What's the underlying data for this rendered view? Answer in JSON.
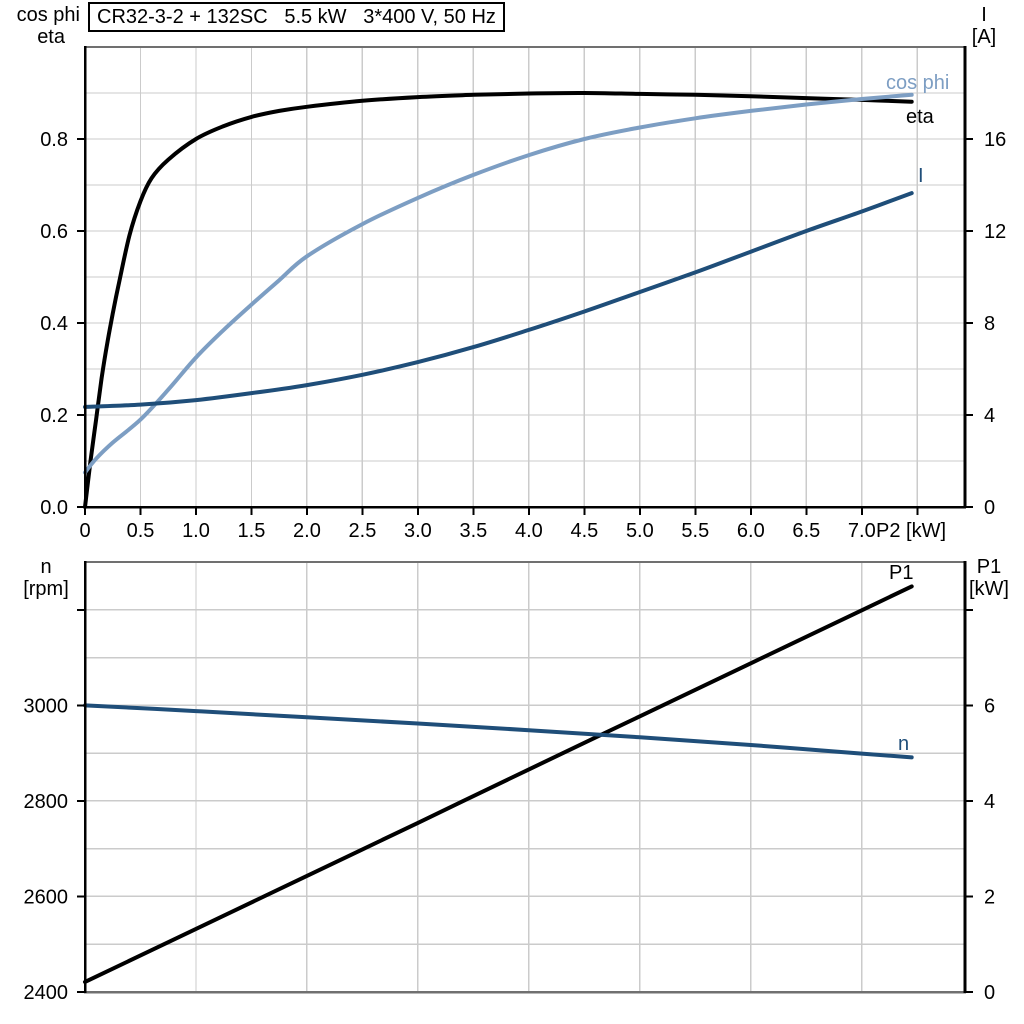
{
  "title": "CR32-3-2 + 132SC   5.5 kW   3*400 V, 50 Hz",
  "colors": {
    "black": "#000000",
    "light_blue": "#7D9EC3",
    "dark_blue": "#1F4E79",
    "grid": "#CBCBCB",
    "frame": "#707070"
  },
  "labels": {
    "upper_left_header_line1": "cos phi",
    "upper_left_header_line2": "eta",
    "upper_right_header_line1": "I",
    "upper_right_header_line2": "[A]",
    "lower_left_header_line1": "n",
    "lower_left_header_line2": "[rpm]",
    "lower_right_header_line1": "P1",
    "lower_right_header_line2": "[kW]",
    "curve_cos_phi": "cos phi",
    "curve_eta": "eta",
    "curve_current": "I",
    "curve_p1": "P1",
    "curve_n": "n"
  },
  "chart_data": [
    {
      "id": "upper",
      "type": "line",
      "x_axis": {
        "label": "P2 [kW]",
        "min": 0,
        "max": 7.93,
        "grid_step": 0.5,
        "tick_values": [
          0,
          0.5,
          1.0,
          1.5,
          2.0,
          2.5,
          3.0,
          3.5,
          4.0,
          4.5,
          5.0,
          5.5,
          6.0,
          6.5,
          7.0,
          7.5
        ],
        "tick_labels": [
          "0",
          "0.5",
          "1.0",
          "1.5",
          "2.0",
          "2.5",
          "3.0",
          "3.5",
          "4.0",
          "4.5",
          "5.0",
          "5.5",
          "6.0",
          "6.5",
          "7.0",
          ""
        ]
      },
      "left_axis": {
        "title": "cos phi / eta",
        "min": 0,
        "max": 1.0,
        "grid_step": 0.1,
        "tick_values": [
          0,
          0.2,
          0.4,
          0.6,
          0.8
        ],
        "tick_labels": [
          "0.0",
          "0.2",
          "0.4",
          "0.6",
          "0.8"
        ]
      },
      "right_axis": {
        "title": "I [A]",
        "min": 0,
        "max": 20,
        "grid_step": 2,
        "tick_values": [
          0,
          4,
          8,
          12,
          16
        ],
        "tick_labels": [
          "0",
          "4",
          "8",
          "12",
          "16"
        ]
      },
      "series": [
        {
          "name": "eta",
          "axis": "left",
          "color": "black",
          "points": [
            [
              0,
              0
            ],
            [
              0.05,
              0.1
            ],
            [
              0.1,
              0.19
            ],
            [
              0.15,
              0.28
            ],
            [
              0.2,
              0.355
            ],
            [
              0.25,
              0.42
            ],
            [
              0.3,
              0.48
            ],
            [
              0.4,
              0.59
            ],
            [
              0.5,
              0.665
            ],
            [
              0.6,
              0.715
            ],
            [
              0.75,
              0.755
            ],
            [
              1.0,
              0.8
            ],
            [
              1.25,
              0.828
            ],
            [
              1.5,
              0.848
            ],
            [
              1.75,
              0.861
            ],
            [
              2.0,
              0.87
            ],
            [
              2.5,
              0.883
            ],
            [
              3.0,
              0.891
            ],
            [
              3.5,
              0.896
            ],
            [
              4.0,
              0.899
            ],
            [
              4.5,
              0.9
            ],
            [
              5.0,
              0.898
            ],
            [
              5.5,
              0.896
            ],
            [
              6.0,
              0.893
            ],
            [
              6.5,
              0.889
            ],
            [
              7.0,
              0.885
            ],
            [
              7.45,
              0.881
            ]
          ]
        },
        {
          "name": "cos_phi",
          "axis": "left",
          "color": "light_blue",
          "points": [
            [
              0,
              0.075
            ],
            [
              0.1,
              0.105
            ],
            [
              0.25,
              0.14
            ],
            [
              0.5,
              0.19
            ],
            [
              0.75,
              0.255
            ],
            [
              1.0,
              0.325
            ],
            [
              1.25,
              0.385
            ],
            [
              1.5,
              0.44
            ],
            [
              1.75,
              0.493
            ],
            [
              2.0,
              0.545
            ],
            [
              2.5,
              0.615
            ],
            [
              3.0,
              0.672
            ],
            [
              3.5,
              0.722
            ],
            [
              4.0,
              0.765
            ],
            [
              4.5,
              0.8
            ],
            [
              5.0,
              0.825
            ],
            [
              5.5,
              0.845
            ],
            [
              6.0,
              0.861
            ],
            [
              6.5,
              0.875
            ],
            [
              7.0,
              0.887
            ],
            [
              7.45,
              0.896
            ]
          ]
        },
        {
          "name": "current",
          "axis": "right",
          "color": "dark_blue",
          "points": [
            [
              0,
              4.35
            ],
            [
              0.5,
              4.45
            ],
            [
              1.0,
              4.65
            ],
            [
              1.5,
              4.95
            ],
            [
              2.0,
              5.3
            ],
            [
              2.5,
              5.75
            ],
            [
              3.0,
              6.3
            ],
            [
              3.5,
              6.95
            ],
            [
              4.0,
              7.7
            ],
            [
              4.5,
              8.5
            ],
            [
              5.0,
              9.35
            ],
            [
              5.5,
              10.2
            ],
            [
              6.0,
              11.1
            ],
            [
              6.5,
              12.0
            ],
            [
              7.0,
              12.85
            ],
            [
              7.45,
              13.65
            ]
          ]
        }
      ]
    },
    {
      "id": "lower",
      "type": "line",
      "x_axis": {
        "label": "",
        "min": 0,
        "max": 7.93,
        "grid_step": 1.0,
        "tick_values": [],
        "tick_labels": []
      },
      "left_axis": {
        "title": "n [rpm]",
        "min": 2400,
        "max": 3300,
        "grid_step": 100,
        "tick_values": [
          2400,
          2600,
          2800,
          3000,
          3200
        ],
        "tick_labels": [
          "2400",
          "2600",
          "2800",
          "3000",
          ""
        ]
      },
      "right_axis": {
        "title": "P1 [kW]",
        "min": 0,
        "max": 9,
        "grid_step": 1,
        "tick_values": [
          0,
          2,
          4,
          6,
          8
        ],
        "tick_labels": [
          "0",
          "2",
          "4",
          "6",
          ""
        ]
      },
      "series": [
        {
          "name": "p1",
          "axis": "right",
          "color": "black",
          "points": [
            [
              0,
              0.21
            ],
            [
              1.0,
              1.32
            ],
            [
              2.0,
              2.43
            ],
            [
              3.0,
              3.54
            ],
            [
              4.0,
              4.66
            ],
            [
              5.0,
              5.77
            ],
            [
              6.0,
              6.88
            ],
            [
              7.0,
              7.99
            ],
            [
              7.45,
              8.49
            ]
          ]
        },
        {
          "name": "n",
          "axis": "left",
          "color": "dark_blue",
          "points": [
            [
              0,
              3000
            ],
            [
              1.0,
              2988
            ],
            [
              2.0,
              2975
            ],
            [
              3.0,
              2962
            ],
            [
              4.0,
              2948
            ],
            [
              5.0,
              2933
            ],
            [
              6.0,
              2917
            ],
            [
              7.0,
              2899
            ],
            [
              7.45,
              2891
            ]
          ]
        }
      ]
    }
  ]
}
